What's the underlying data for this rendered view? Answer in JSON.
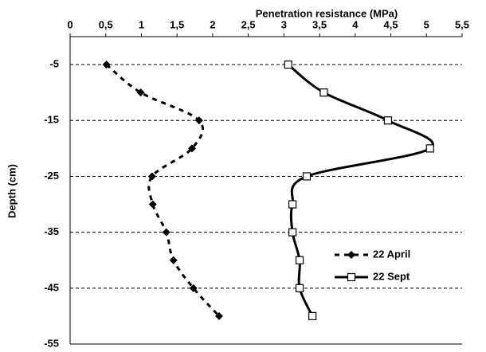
{
  "chart_data": {
    "type": "line",
    "x_axis_label": "Penetration resistance (MPa)",
    "y_axis_label": "Depth (cm)",
    "xlim": [
      0,
      5.5
    ],
    "xticks": [
      0,
      {
        "value": 0.5,
        "label": "0,5"
      },
      1,
      {
        "value": 1.5,
        "label": "1,5"
      },
      2,
      {
        "value": 2.5,
        "label": "2,5"
      },
      3,
      {
        "value": 3.5,
        "label": "3,5"
      },
      4,
      {
        "value": 4.5,
        "label": "4,5"
      },
      5,
      {
        "value": 5.5,
        "label": "5,5"
      }
    ],
    "ylim": [
      0,
      -55
    ],
    "yticks": [
      -5,
      -15,
      -25,
      -35,
      -45,
      -55
    ],
    "grid": true,
    "y": [
      -5,
      -10,
      -15,
      -20,
      -25,
      -30,
      -35,
      -40,
      -45,
      -50
    ],
    "series": [
      {
        "name": "22 April",
        "color": "#000000",
        "marker": "diamond",
        "dash": true,
        "values": [
          0.51,
          0.99,
          1.81,
          1.71,
          1.15,
          1.16,
          1.35,
          1.45,
          1.73,
          2.09
        ]
      },
      {
        "name": "22 Sept",
        "color": "#000000",
        "marker": "square",
        "dash": false,
        "values": [
          3.06,
          3.56,
          4.46,
          5.05,
          3.32,
          3.12,
          3.12,
          3.22,
          3.22,
          3.4
        ]
      }
    ]
  }
}
